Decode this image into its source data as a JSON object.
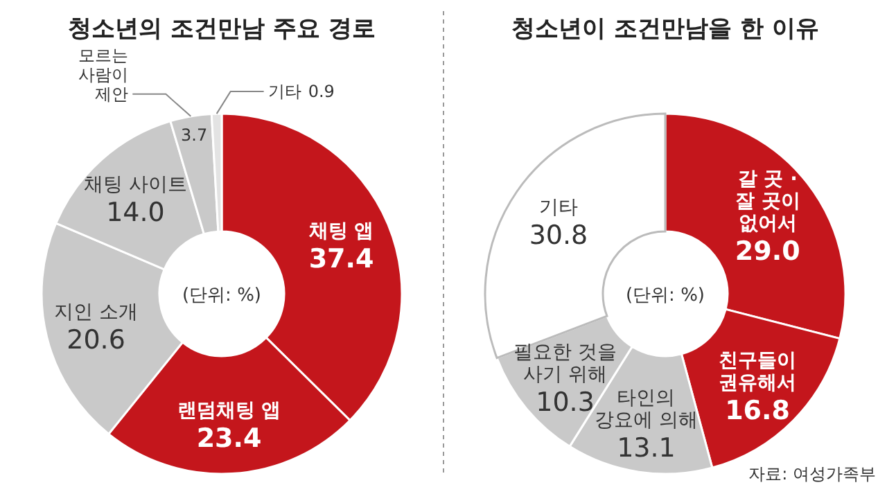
{
  "chart_data": [
    {
      "type": "donut",
      "title": "청소년의 조건만남 주요 경로",
      "annotations": [
        "(단위: %)"
      ],
      "data_labels": true,
      "categories": [
        "채팅 앱",
        "랜덤채팅 앱",
        "지인 소개",
        "채팅 사이트",
        "모르는 사람이 제안",
        "기타"
      ],
      "values": [
        37.4,
        23.4,
        20.6,
        14.0,
        3.7,
        0.9
      ],
      "value_labels": [
        "37.4",
        "23.4",
        "20.6",
        "14.0",
        "3.7",
        "0.9"
      ],
      "colors": [
        "#c4161c",
        "#c4161c",
        "#c9c9c9",
        "#c9c9c9",
        "#c9c9c9",
        "#e3e3e3"
      ]
    },
    {
      "type": "donut",
      "title": "청소년이 조건만남을 한 이유",
      "annotations": [
        "(단위: %)",
        "자료: 여성가족부"
      ],
      "data_labels": true,
      "categories": [
        "갈 곳 · 잘 곳이 없어서",
        "친구들이 권유해서",
        "타인의 강요에 의해",
        "필요한 것을 사기 위해",
        "기타"
      ],
      "values": [
        29.0,
        16.8,
        13.1,
        10.3,
        30.8
      ],
      "value_labels": [
        "29.0",
        "16.8",
        "13.1",
        "10.3",
        "30.8"
      ],
      "colors": [
        "#c4161c",
        "#c4161c",
        "#c9c9c9",
        "#c9c9c9",
        "#ffffff"
      ]
    }
  ]
}
